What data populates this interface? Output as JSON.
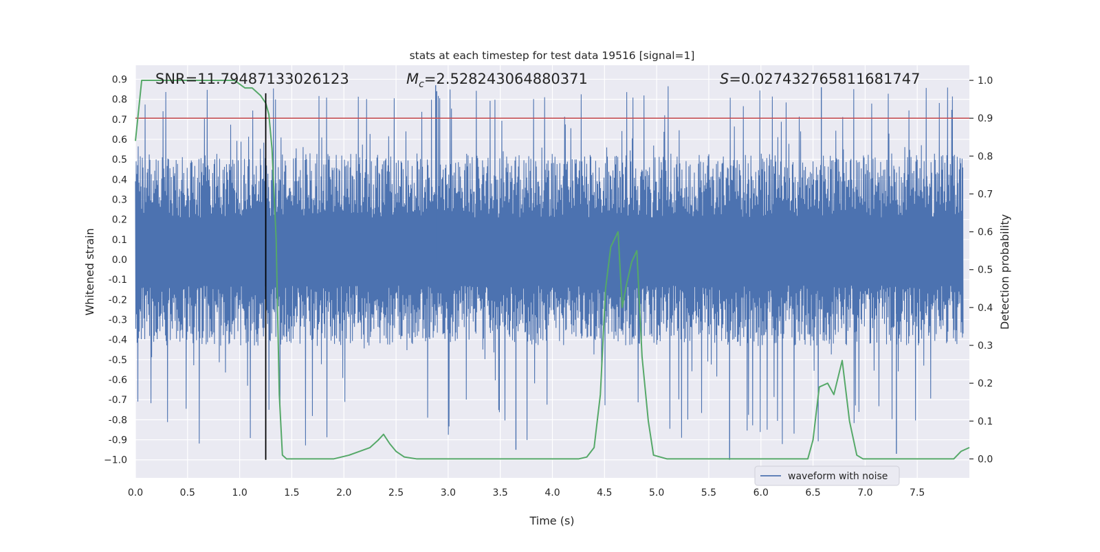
{
  "chart_data": {
    "type": "line",
    "title": "stats at each timestep for test data 19516 [signal=1]",
    "xlabel": "Time (s)",
    "ylabel_left": "Whitened strain",
    "ylabel_right": "Detection probability",
    "xlim": [
      0.0,
      8.0
    ],
    "ylim_left": [
      -1.09,
      0.97
    ],
    "ylim_right": [
      -0.05,
      1.04
    ],
    "x_ticks": [
      "0.0",
      "0.5",
      "1.0",
      "1.5",
      "2.0",
      "2.5",
      "3.0",
      "3.5",
      "4.0",
      "4.5",
      "5.0",
      "5.5",
      "6.0",
      "6.5",
      "7.0",
      "7.5"
    ],
    "y_left_ticks": [
      "0.9",
      "0.8",
      "0.7",
      "0.6",
      "0.5",
      "0.4",
      "0.3",
      "0.2",
      "0.1",
      "0.0",
      "-0.1",
      "-0.2",
      "-0.3",
      "-0.4",
      "-0.5",
      "-0.6",
      "-0.7",
      "-0.8",
      "-0.9",
      "−1.0"
    ],
    "y_right_ticks": [
      "1.0",
      "0.9",
      "0.8",
      "0.7",
      "0.6",
      "0.5",
      "0.4",
      "0.3",
      "0.2",
      "0.1",
      "0.0"
    ],
    "annotations": {
      "snr": "SNR=11.79487133026123",
      "mc": "=2.528243064880371",
      "mc_symbol": "M",
      "mc_sub": "c",
      "s": "=0.027432765811681747",
      "s_symbol": "S"
    },
    "legend": {
      "label": "waveform with noise",
      "placement": "lower-right"
    },
    "colors": {
      "waveform": "#4c72b0",
      "probability": "#55a868",
      "threshold": "#c44e52",
      "marker": "#000000",
      "background": "#eaeaf2",
      "grid": "#ffffff"
    },
    "threshold_probability": 0.9,
    "marker_time": 1.25,
    "waveform": {
      "name": "waveform with noise",
      "typical_band": [
        -0.43,
        0.53
      ],
      "max": 0.87,
      "min": -1.0
    },
    "probability": {
      "x": [
        0.0,
        0.06,
        0.2,
        0.4,
        0.6,
        0.8,
        0.95,
        1.0,
        1.05,
        1.12,
        1.2,
        1.25,
        1.28,
        1.31,
        1.35,
        1.38,
        1.41,
        1.45,
        1.5,
        1.7,
        1.9,
        2.05,
        2.15,
        2.25,
        2.33,
        2.38,
        2.44,
        2.5,
        2.58,
        2.7,
        2.9,
        3.0,
        3.2,
        3.5,
        3.7,
        4.0,
        4.25,
        4.33,
        4.4,
        4.46,
        4.51,
        4.56,
        4.63,
        4.67,
        4.71,
        4.76,
        4.81,
        4.86,
        4.92,
        4.97,
        5.1,
        5.5,
        6.0,
        6.45,
        6.5,
        6.56,
        6.64,
        6.7,
        6.78,
        6.85,
        6.92,
        6.98,
        7.03,
        7.1,
        7.5,
        7.85,
        7.92,
        8.0
      ],
      "y": [
        0.84,
        1.0,
        1.0,
        1.0,
        1.0,
        1.0,
        1.0,
        0.99,
        0.98,
        0.98,
        0.96,
        0.94,
        0.91,
        0.82,
        0.58,
        0.17,
        0.01,
        0.0,
        0.0,
        0.0,
        0.0,
        0.01,
        0.02,
        0.03,
        0.05,
        0.065,
        0.04,
        0.02,
        0.005,
        0.0,
        0.0,
        0.0,
        0.0,
        0.0,
        0.0,
        0.0,
        0.0,
        0.005,
        0.03,
        0.17,
        0.45,
        0.56,
        0.6,
        0.4,
        0.46,
        0.52,
        0.55,
        0.27,
        0.1,
        0.01,
        0.0,
        0.0,
        0.0,
        0.0,
        0.05,
        0.19,
        0.2,
        0.17,
        0.26,
        0.1,
        0.01,
        0.0,
        0.0,
        0.0,
        0.0,
        0.0,
        0.02,
        0.03
      ]
    }
  }
}
